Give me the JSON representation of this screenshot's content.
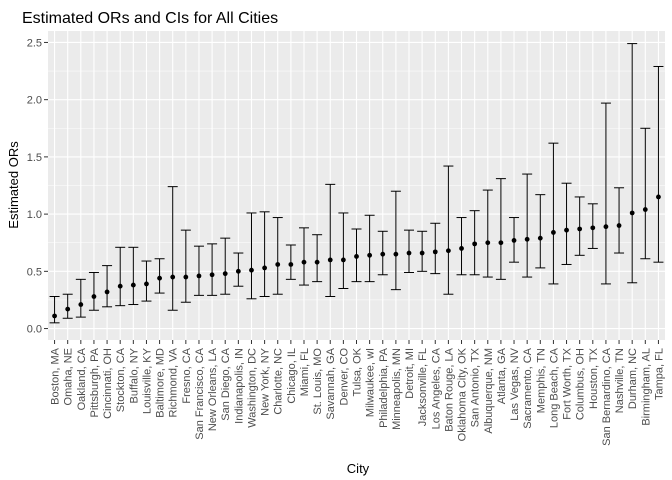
{
  "chart_data": {
    "type": "scatter",
    "title": "Estimated ORs and CIs for All Cities",
    "xlabel": "City",
    "ylabel": "Estimated ORs",
    "ylim": [
      -0.1,
      2.6
    ],
    "yticks": [
      0.0,
      0.5,
      1.0,
      1.5,
      2.0,
      2.5
    ],
    "ytick_labels": [
      "0.0",
      "0.5",
      "1.0",
      "1.5",
      "2.0",
      "2.5"
    ],
    "grid": true,
    "legend": "none",
    "colors": {
      "panel": "#EBEBEB",
      "grid": "#FFFFFF",
      "point": "#000000",
      "errorbar": "#000000"
    },
    "categories": [
      "Boston, MA",
      "Omaha, NE",
      "Oakland, CA",
      "Pittsburgh, PA",
      "Cincinnati, OH",
      "Stockton, CA",
      "Buffalo, NY",
      "Louisville, KY",
      "Baltimore, MD",
      "Richmond, VA",
      "Fresno, CA",
      "San Francisco, CA",
      "New Orleans, LA",
      "San Diego, CA",
      "Indianapolis, IN",
      "Washington, DC",
      "New York, NY",
      "Charlotte, NC",
      "Chicago, IL",
      "Miami, FL",
      "St. Louis, MO",
      "Savannah, GA",
      "Denver, CO",
      "Tulsa, OK",
      "Milwaukee, wI",
      "Philadelphia, PA",
      "Minneapolis, MN",
      "Detroit, MI",
      "Jacksonville, FL",
      "Los Angeles, CA",
      "Baton Rouge, LA",
      "Oklahoma City, OK",
      "San Antonio, TX",
      "Albuquerque, NM",
      "Atlanta, GA",
      "Las Vegas, NV",
      "Sacramento, CA",
      "Memphis, TN",
      "Long Beach, CA",
      "Fort Worth, TX",
      "Columbus, OH",
      "Houston, TX",
      "San Bernardino, CA",
      "Nashville, TN",
      "Durham, NC",
      "Birmingham, AL",
      "Tampa, FL"
    ],
    "series": [
      {
        "values": [
          0.11,
          0.17,
          0.21,
          0.28,
          0.32,
          0.37,
          0.38,
          0.39,
          0.44,
          0.45,
          0.45,
          0.46,
          0.47,
          0.48,
          0.5,
          0.51,
          0.53,
          0.56,
          0.56,
          0.58,
          0.58,
          0.6,
          0.6,
          0.63,
          0.64,
          0.65,
          0.65,
          0.66,
          0.66,
          0.67,
          0.68,
          0.7,
          0.74,
          0.75,
          0.75,
          0.77,
          0.78,
          0.79,
          0.84,
          0.86,
          0.87,
          0.88,
          0.89,
          0.9,
          1.01,
          1.04,
          1.15
        ],
        "lower": [
          0.05,
          0.09,
          0.1,
          0.16,
          0.19,
          0.2,
          0.21,
          0.24,
          0.31,
          0.16,
          0.23,
          0.29,
          0.29,
          0.3,
          0.37,
          0.26,
          0.28,
          0.3,
          0.43,
          0.38,
          0.41,
          0.28,
          0.35,
          0.41,
          0.41,
          0.47,
          0.34,
          0.49,
          0.5,
          0.48,
          0.3,
          0.47,
          0.47,
          0.45,
          0.43,
          0.58,
          0.45,
          0.53,
          0.39,
          0.56,
          0.64,
          0.7,
          0.39,
          0.66,
          0.4,
          0.61,
          0.58
        ],
        "upper": [
          0.28,
          0.3,
          0.43,
          0.49,
          0.55,
          0.71,
          0.71,
          0.59,
          0.61,
          1.24,
          0.86,
          0.72,
          0.74,
          0.79,
          0.66,
          1.01,
          1.02,
          0.97,
          0.73,
          0.88,
          0.82,
          1.26,
          1.01,
          0.87,
          0.99,
          0.85,
          1.2,
          0.86,
          0.85,
          0.92,
          1.42,
          0.97,
          1.03,
          1.21,
          1.31,
          0.97,
          1.35,
          1.17,
          1.62,
          1.27,
          1.15,
          1.09,
          1.97,
          1.23,
          2.49,
          1.75,
          2.29
        ]
      }
    ]
  }
}
